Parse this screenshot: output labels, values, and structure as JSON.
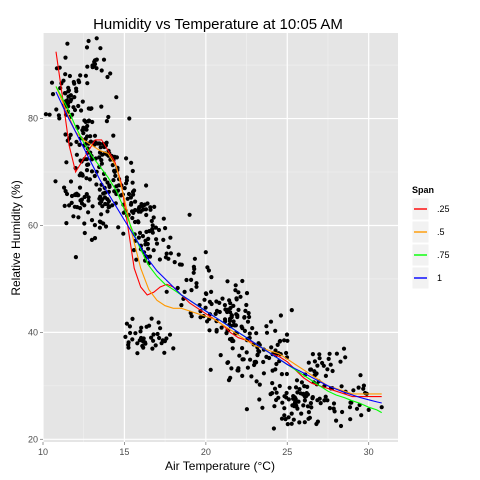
{
  "chart_data": {
    "type": "scatter",
    "title": "Humidity vs Temperature at 10:05 AM",
    "xlabel": "Air Temperature (°C)",
    "ylabel": "Relative Humidity (%)",
    "xlim": [
      10,
      31.8
    ],
    "ylim": [
      19.5,
      96
    ],
    "x_ticks": [
      10,
      15,
      20,
      25,
      30
    ],
    "y_ticks": [
      20,
      40,
      60,
      80
    ],
    "grid": true,
    "legend": {
      "title": "Span",
      "position": "right"
    },
    "points": {
      "clusters": [
        {
          "cx": 11.5,
          "cy": 84,
          "sx": 0.5,
          "sy": 3.5,
          "n": 45
        },
        {
          "cx": 12.5,
          "cy": 78,
          "sx": 0.6,
          "sy": 4.5,
          "n": 60
        },
        {
          "cx": 13.3,
          "cy": 90,
          "sx": 0.3,
          "sy": 1.8,
          "n": 18
        },
        {
          "cx": 12.5,
          "cy": 64,
          "sx": 0.8,
          "sy": 3.2,
          "n": 45
        },
        {
          "cx": 13.7,
          "cy": 70,
          "sx": 0.6,
          "sy": 4.0,
          "n": 50
        },
        {
          "cx": 14.7,
          "cy": 66,
          "sx": 0.6,
          "sy": 3.5,
          "n": 45
        },
        {
          "cx": 15.8,
          "cy": 61,
          "sx": 0.6,
          "sy": 3.2,
          "n": 45
        },
        {
          "cx": 16.3,
          "cy": 39,
          "sx": 0.7,
          "sy": 1.5,
          "n": 40
        },
        {
          "cx": 17.0,
          "cy": 55,
          "sx": 0.8,
          "sy": 2.5,
          "n": 25
        },
        {
          "cx": 18.5,
          "cy": 51,
          "sx": 0.8,
          "sy": 2.2,
          "n": 20
        },
        {
          "cx": 20.5,
          "cy": 45,
          "sx": 0.9,
          "sy": 3.0,
          "n": 35
        },
        {
          "cx": 21.7,
          "cy": 43,
          "sx": 0.6,
          "sy": 3.0,
          "n": 45
        },
        {
          "cx": 22.5,
          "cy": 36,
          "sx": 0.7,
          "sy": 3.2,
          "n": 35
        },
        {
          "cx": 23.8,
          "cy": 37,
          "sx": 0.8,
          "sy": 2.8,
          "n": 35
        },
        {
          "cx": 24.5,
          "cy": 29,
          "sx": 0.8,
          "sy": 2.2,
          "n": 25
        },
        {
          "cx": 26.0,
          "cy": 27,
          "sx": 0.9,
          "sy": 2.5,
          "n": 55
        },
        {
          "cx": 27.0,
          "cy": 33,
          "sx": 0.8,
          "sy": 2.2,
          "n": 30
        },
        {
          "cx": 28.5,
          "cy": 28,
          "sx": 1.1,
          "sy": 2.5,
          "n": 20
        }
      ],
      "extra": [
        [
          12.8,
          94.5
        ],
        [
          13.3,
          95.0
        ],
        [
          11.5,
          94.0
        ],
        [
          19.0,
          62.0
        ],
        [
          20.0,
          55.0
        ],
        [
          18.0,
          37.0
        ],
        [
          30.8,
          26.0
        ],
        [
          30.0,
          25.5
        ],
        [
          28.3,
          22.5
        ],
        [
          28.0,
          23.5
        ],
        [
          14.5,
          84.0
        ],
        [
          15.3,
          80.0
        ],
        [
          15.5,
          68.0
        ],
        [
          16.8,
          61.5
        ],
        [
          17.5,
          59.5
        ],
        [
          24.0,
          42.0
        ],
        [
          22.0,
          47.5
        ],
        [
          20.3,
          33.0
        ],
        [
          29.5,
          32.0
        ],
        [
          27.6,
          36.0
        ]
      ]
    },
    "series": [
      {
        "name": ".25",
        "color": "#ff0000",
        "x": [
          10.8,
          11.2,
          11.6,
          12.0,
          12.4,
          12.8,
          13.2,
          13.6,
          14.0,
          14.4,
          14.8,
          15.2,
          15.6,
          16.0,
          16.4,
          16.8,
          17.2,
          17.6,
          18.0,
          18.5,
          19.0,
          19.5,
          20.0,
          20.5,
          21.0,
          21.5,
          22.0,
          22.5,
          23.0,
          23.5,
          24.0,
          24.5,
          25.0,
          25.5,
          26.0,
          26.5,
          27.0,
          27.5,
          28.0,
          28.5,
          29.0,
          29.5,
          30.0,
          30.5,
          30.8
        ],
        "y": [
          92.5,
          84.0,
          75.0,
          70.0,
          72.0,
          74.0,
          76.0,
          76.0,
          74.0,
          72.0,
          68.0,
          60.0,
          52.0,
          48.5,
          47.0,
          47.5,
          48.5,
          49.0,
          48.5,
          47.0,
          45.5,
          44.5,
          43.5,
          42.5,
          41.5,
          40.0,
          39.0,
          38.5,
          38.0,
          37.0,
          36.0,
          35.5,
          34.5,
          33.0,
          31.5,
          30.5,
          30.0,
          29.5,
          29.0,
          28.5,
          28.0,
          28.0,
          28.0,
          28.0,
          28.0
        ]
      },
      {
        "name": ".5",
        "color": "#ff9900",
        "x": [
          10.8,
          11.5,
          12.0,
          12.5,
          13.0,
          13.5,
          14.0,
          14.5,
          15.0,
          15.5,
          16.0,
          16.5,
          17.0,
          17.5,
          18.0,
          18.5,
          19.0,
          19.5,
          20.0,
          20.5,
          21.0,
          21.5,
          22.0,
          22.5,
          23.0,
          23.5,
          24.0,
          24.5,
          25.0,
          25.5,
          26.0,
          26.5,
          27.0,
          27.5,
          28.0,
          28.5,
          29.0,
          29.5,
          30.0,
          30.5,
          30.8
        ],
        "y": [
          86.0,
          81.0,
          77.5,
          76.0,
          75.0,
          74.0,
          73.5,
          71.0,
          65.0,
          58.0,
          52.0,
          48.0,
          46.0,
          45.0,
          44.5,
          44.5,
          44.0,
          43.5,
          43.0,
          42.5,
          41.5,
          40.5,
          39.5,
          38.5,
          37.5,
          37.0,
          36.5,
          36.0,
          35.0,
          34.0,
          33.0,
          32.0,
          31.0,
          30.0,
          29.5,
          29.0,
          28.5,
          28.5,
          28.5,
          28.5,
          28.5
        ]
      },
      {
        "name": ".75",
        "color": "#00ff00",
        "x": [
          10.8,
          11.5,
          12.0,
          12.5,
          13.0,
          13.5,
          14.0,
          14.5,
          15.0,
          15.5,
          16.0,
          16.5,
          17.0,
          17.5,
          18.0,
          18.5,
          19.0,
          19.5,
          20.0,
          20.5,
          21.0,
          21.5,
          22.0,
          22.5,
          23.0,
          23.5,
          24.0,
          24.5,
          25.0,
          25.5,
          26.0,
          26.5,
          27.0,
          27.5,
          28.0,
          28.5,
          29.0,
          29.5,
          30.0,
          30.5,
          30.8
        ],
        "y": [
          86.0,
          82.0,
          78.5,
          75.5,
          73.0,
          71.0,
          69.0,
          66.5,
          63.0,
          59.0,
          55.5,
          52.5,
          50.5,
          49.0,
          48.0,
          47.0,
          46.0,
          45.0,
          44.0,
          43.0,
          42.0,
          41.0,
          40.0,
          39.0,
          38.0,
          37.0,
          36.0,
          35.0,
          34.0,
          33.0,
          32.0,
          31.0,
          30.0,
          29.0,
          28.3,
          27.8,
          27.2,
          26.7,
          26.0,
          25.5,
          25.0
        ]
      },
      {
        "name": "1",
        "color": "#0000ff",
        "x": [
          10.8,
          11.5,
          12.0,
          12.5,
          13.0,
          13.5,
          14.0,
          14.5,
          15.0,
          15.5,
          16.0,
          16.5,
          17.0,
          17.5,
          18.0,
          18.5,
          19.0,
          19.5,
          20.0,
          20.5,
          21.0,
          21.5,
          22.0,
          22.5,
          23.0,
          23.5,
          24.0,
          24.5,
          25.0,
          25.5,
          26.0,
          26.5,
          27.0,
          27.5,
          28.0,
          28.5,
          29.0,
          29.5,
          30.0,
          30.5,
          30.8
        ],
        "y": [
          85.0,
          80.5,
          77.5,
          74.5,
          71.5,
          68.5,
          66.0,
          63.5,
          61.0,
          58.5,
          56.0,
          53.5,
          51.5,
          50.0,
          48.5,
          47.0,
          46.0,
          45.0,
          44.0,
          43.0,
          42.0,
          41.0,
          40.0,
          39.0,
          38.0,
          37.0,
          36.0,
          35.0,
          34.0,
          33.2,
          32.4,
          31.6,
          30.8,
          30.0,
          29.4,
          28.8,
          28.3,
          27.8,
          27.4,
          27.0,
          26.8
        ]
      }
    ]
  },
  "colors": {
    "panel_bg": "#e5e5e5",
    "grid_major": "#ffffff",
    "grid_minor": "#f2f2f2",
    "point": "#000000"
  }
}
